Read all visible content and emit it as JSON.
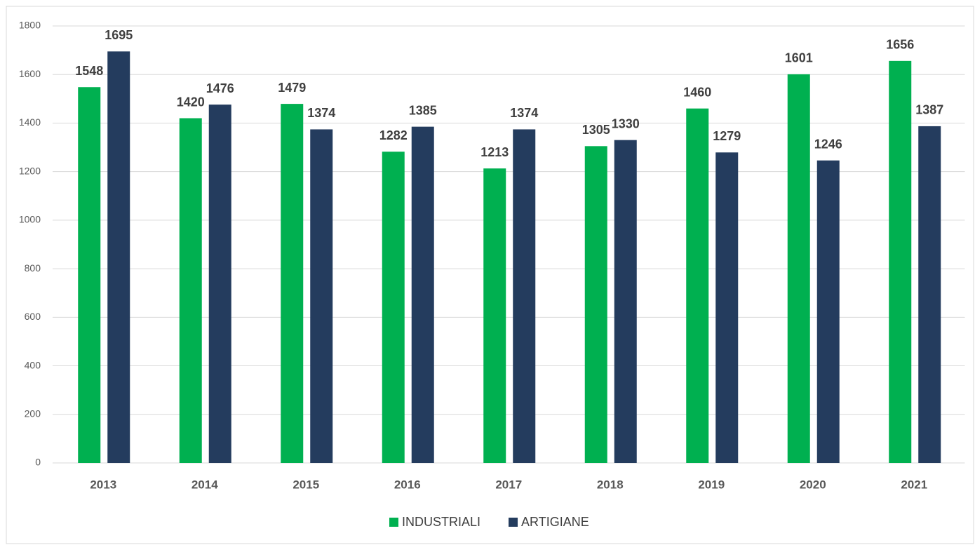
{
  "chart_data": {
    "type": "bar",
    "categories": [
      "2013",
      "2014",
      "2015",
      "2016",
      "2017",
      "2018",
      "2019",
      "2020",
      "2021"
    ],
    "series": [
      {
        "name": "INDUSTRIALI",
        "color": "#00b050",
        "values": [
          1548,
          1420,
          1479,
          1282,
          1213,
          1305,
          1460,
          1601,
          1656
        ]
      },
      {
        "name": "ARTIGIANE",
        "color": "#243c5e",
        "values": [
          1695,
          1476,
          1374,
          1385,
          1374,
          1330,
          1279,
          1246,
          1387
        ]
      }
    ],
    "ylim": [
      0,
      1800
    ],
    "yticks": [
      0,
      200,
      400,
      600,
      800,
      1000,
      1200,
      1400,
      1600,
      1800
    ],
    "grid": true,
    "legend": "bottom"
  }
}
